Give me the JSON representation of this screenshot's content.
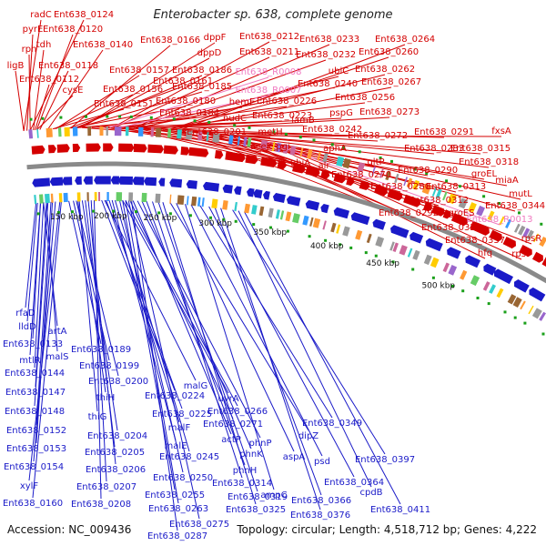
{
  "header": {
    "title": "Enterobacter sp. 638, complete genome"
  },
  "footer": {
    "accession": "Accession: NC_009436",
    "summary": "Topology: circular; Length: 4,518,712 bp; Genes: 4,222"
  },
  "colors": {
    "forward": "#d40000",
    "reverse": "#1a1ac8",
    "rna": "#f07ac0",
    "backbone": "#8a8a8a",
    "marker": "#1aa01a"
  },
  "ticks": [
    "150 kbp",
    "200 kbp",
    "250 kbp",
    "300 kbp",
    "350 kbp",
    "400 kbp",
    "450 kbp",
    "500 kbp"
  ],
  "forward_labels": [
    "radC",
    "Ent638_0124",
    "pyrE",
    "Ent638_0120",
    "tdh",
    "rph",
    "Ent638_0140",
    "Ent638_0166",
    "dppF",
    "Ent638_0212",
    "Ent638_0233",
    "Ent638_0264",
    "ligB",
    "Ent638_0118",
    "dppD",
    "Ent638_0211",
    "Ent638_0232",
    "Ent638_0260",
    "Ent638_0157",
    "Ent638_0161",
    "Ent638_0186",
    "ubiC",
    "Ent638_0262",
    "Ent638_0112",
    "cysE",
    "Ent638_0185",
    "Ent638_0240",
    "Ent638_0267",
    "Ent638_0156",
    "hemE",
    "Ent638_0226",
    "Ent638_0256",
    "Ent638_0151",
    "Ent638_0180",
    "pspG",
    "Ent638_0273",
    "Ent638_0184",
    "nudC",
    "Ent638_0223",
    "Ent638_0242",
    "Ent638_0201",
    "metH",
    "lamB",
    "Ent638_0272",
    "Ent638_0291",
    "fxsA",
    "aceK",
    "pgi",
    "aphA",
    "Ent638_0283",
    "Ent638_0315",
    "ubiA",
    "alr",
    "gltP",
    "Ent638_0318",
    "Ent638_0270",
    "Ent638_0290",
    "groEL",
    "Ent638_0280",
    "Ent638_0313",
    "miaA",
    "Ent638_0312",
    "mutL",
    "Ent638_0292",
    "groES",
    "Ent638_0344",
    "Ent638_0320",
    "rpsR",
    "Ent638_0337",
    "hfq",
    "rpsF"
  ],
  "rna_labels": [
    "Ent638_R0008",
    "Ent638_R0007",
    "Ent638_R0013"
  ],
  "reverse_labels": [
    "rfaD",
    "lldD",
    "artA",
    "Ent638_0133",
    "malS",
    "mtlR",
    "Ent638_0144",
    "Ent638_0147",
    "Ent638_0148",
    "Ent638_0152",
    "Ent638_0153",
    "Ent638_0154",
    "xylF",
    "Ent638_0160",
    "Ent638_0189",
    "Ent638_0199",
    "Ent638_0200",
    "thiH",
    "thiG",
    "Ent638_0204",
    "Ent638_0205",
    "Ent638_0206",
    "Ent638_0207",
    "Ent638_0208",
    "malG",
    "Ent638_0224",
    "Ent638_0225",
    "malF",
    "malE",
    "Ent638_0245",
    "Ent638_0250",
    "Ent638_0255",
    "Ent638_0263",
    "Ent638_0275",
    "Ent638_0287",
    "uvrA",
    "Ent638_0266",
    "Ent638_0271",
    "actP",
    "phnP",
    "phnK",
    "phnH",
    "Ent638_0314",
    "Ent638_0319",
    "Ent638_0325",
    "dipZ",
    "aspA",
    "ampC",
    "psd",
    "Ent638_0349",
    "Ent638_0364",
    "Ent638_0366",
    "Ent638_0376",
    "Ent638_0397",
    "cpdB",
    "Ent638_0411"
  ]
}
